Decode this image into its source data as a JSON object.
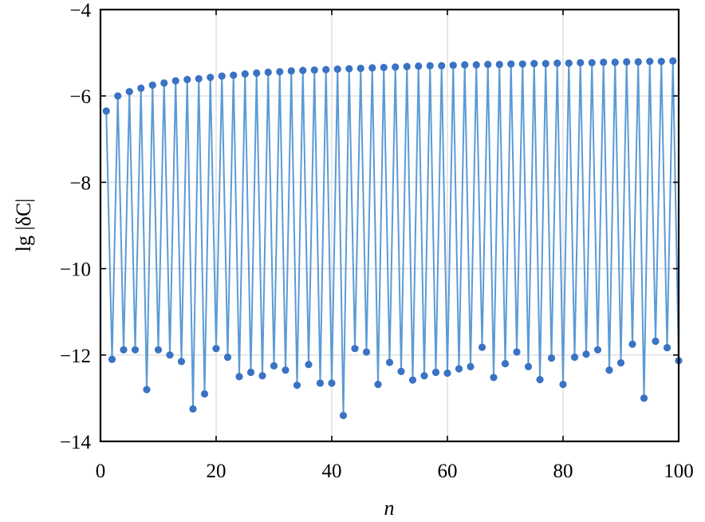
{
  "chart_data": {
    "type": "line",
    "title": "",
    "xlabel": "n",
    "ylabel": "lg |δC|",
    "xlim": [
      0,
      100
    ],
    "ylim": [
      -14,
      -4
    ],
    "xticks": [
      0,
      20,
      40,
      60,
      80,
      100
    ],
    "yticks": [
      -4,
      -6,
      -8,
      -10,
      -12,
      -14
    ],
    "xtick_labels": [
      "0",
      "20",
      "40",
      "60",
      "80",
      "100"
    ],
    "ytick_labels": [
      "−4",
      "−6",
      "−8",
      "−10",
      "−12",
      "−14"
    ],
    "grid": true,
    "line_color": "#5b9bd5",
    "marker_color": "#3a72c4",
    "series": [
      {
        "x": [
          1,
          2,
          3,
          4,
          5,
          6,
          7,
          8,
          9,
          10,
          11,
          12,
          13,
          14,
          15,
          16,
          17,
          18,
          19,
          20,
          21,
          22,
          23,
          24,
          25,
          26,
          27,
          28,
          29,
          30,
          31,
          32,
          33,
          34,
          35,
          36,
          37,
          38,
          39,
          40,
          41,
          42,
          43,
          44,
          45,
          46,
          47,
          48,
          49,
          50,
          51,
          52,
          53,
          54,
          55,
          56,
          57,
          58,
          59,
          60,
          61,
          62,
          63,
          64,
          65,
          66,
          67,
          68,
          69,
          70,
          71,
          72,
          73,
          74,
          75,
          76,
          77,
          78,
          79,
          80,
          81,
          82,
          83,
          84,
          85,
          86,
          87,
          88,
          89,
          90,
          91,
          92,
          93,
          94,
          95,
          96,
          97,
          98,
          99,
          100
        ],
        "values": [
          -6.35,
          -12.1,
          -6.0,
          -11.88,
          -5.9,
          -11.88,
          -5.82,
          -12.8,
          -5.75,
          -11.88,
          -5.7,
          -12.0,
          -5.65,
          -12.15,
          -5.62,
          -13.25,
          -5.6,
          -12.9,
          -5.57,
          -11.85,
          -5.54,
          -12.05,
          -5.52,
          -12.5,
          -5.49,
          -12.4,
          -5.47,
          -12.48,
          -5.45,
          -12.25,
          -5.44,
          -12.35,
          -5.42,
          -12.7,
          -5.41,
          -12.22,
          -5.4,
          -12.65,
          -5.39,
          -12.65,
          -5.38,
          -13.4,
          -5.37,
          -11.85,
          -5.36,
          -11.93,
          -5.35,
          -12.68,
          -5.34,
          -12.17,
          -5.33,
          -12.38,
          -5.32,
          -12.58,
          -5.31,
          -12.48,
          -5.3,
          -12.4,
          -5.3,
          -12.42,
          -5.29,
          -12.32,
          -5.28,
          -12.27,
          -5.28,
          -11.82,
          -5.27,
          -12.52,
          -5.27,
          -12.2,
          -5.26,
          -11.93,
          -5.26,
          -12.27,
          -5.25,
          -12.57,
          -5.25,
          -12.07,
          -5.24,
          -12.68,
          -5.24,
          -12.05,
          -5.23,
          -11.98,
          -5.23,
          -11.88,
          -5.22,
          -12.35,
          -5.22,
          -12.18,
          -5.21,
          -11.75,
          -5.21,
          -13.0,
          -5.2,
          -11.68,
          -5.2,
          -11.83,
          -5.19,
          -12.13
        ]
      }
    ]
  }
}
